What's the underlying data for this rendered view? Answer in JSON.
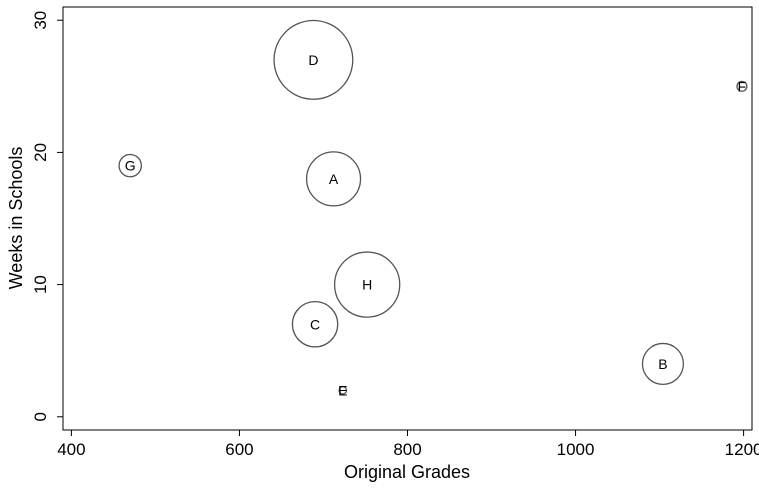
{
  "chart_data": {
    "type": "scatter",
    "title": "",
    "xlabel": "Original Grades",
    "ylabel": "Weeks in Schools",
    "xlim": [
      390,
      1210
    ],
    "ylim": [
      -1,
      31
    ],
    "xticks": [
      400,
      600,
      800,
      1000,
      1200
    ],
    "yticks": [
      0,
      10,
      20,
      30
    ],
    "grid": false,
    "legend": "none",
    "marker": "bubble",
    "colors": {
      "bubble_stroke": "#555555",
      "axis": "#000000",
      "background": "#ffffff"
    },
    "points": [
      {
        "label": "A",
        "x": 712,
        "y": 18,
        "size": 8.7
      },
      {
        "label": "B",
        "x": 1104,
        "y": 4,
        "size": 6.6
      },
      {
        "label": "C",
        "x": 690,
        "y": 7,
        "size": 7.3
      },
      {
        "label": "D",
        "x": 688,
        "y": 27,
        "size": 12.7
      },
      {
        "label": "E",
        "x": 723,
        "y": 2,
        "size": 1.2
      },
      {
        "label": "F",
        "x": 1198,
        "y": 25,
        "size": 1.6
      },
      {
        "label": "G",
        "x": 470,
        "y": 19,
        "size": 3.6
      },
      {
        "label": "H",
        "x": 752,
        "y": 10,
        "size": 10.5
      }
    ]
  }
}
